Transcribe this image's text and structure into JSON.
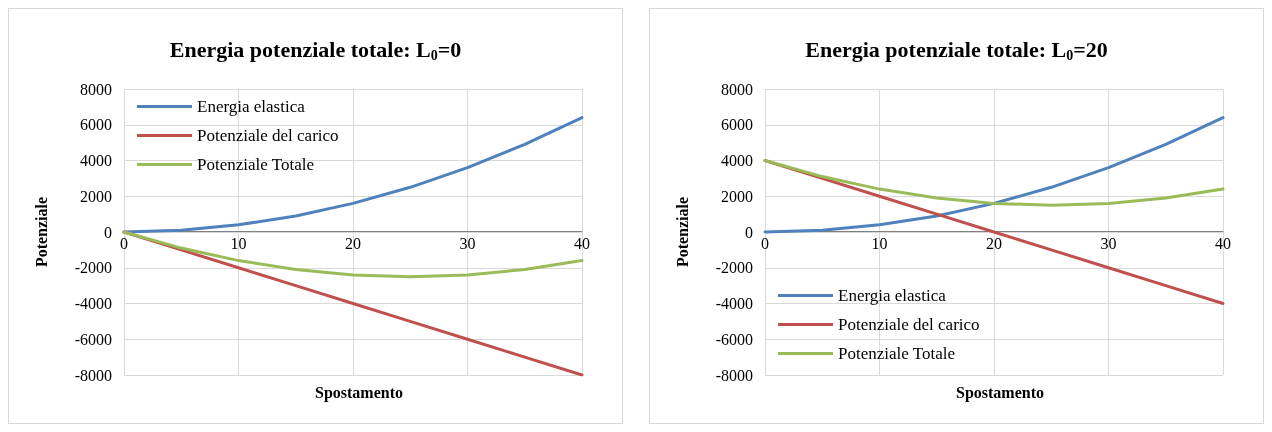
{
  "chart_data": [
    {
      "type": "line",
      "title": "Energia potenziale totale: L$_{0}$=0",
      "xlabel": "Spostamento",
      "ylabel": "Potenziale",
      "x": [
        0,
        5,
        10,
        15,
        20,
        25,
        30,
        35,
        40
      ],
      "series": [
        {
          "name": "Energia elastica",
          "color": "#4f81bd",
          "values": [
            0,
            100,
            400,
            900,
            1600,
            2500,
            3600,
            4900,
            6400
          ]
        },
        {
          "name": "Potenziale del carico",
          "color": "#c0504d",
          "values": [
            0,
            -1000,
            -2000,
            -3000,
            -4000,
            -5000,
            -6000,
            -7000,
            -8000
          ]
        },
        {
          "name": "Potenziale Totale",
          "color": "#9bbb59",
          "values": [
            0,
            -900,
            -1600,
            -2100,
            -2400,
            -2500,
            -2400,
            -2100,
            -1600
          ]
        }
      ],
      "xlim": [
        0,
        40
      ],
      "xticks": [
        0,
        10,
        20,
        30,
        40
      ],
      "ylim": [
        -8000,
        8000
      ],
      "yticks": [
        -8000,
        -6000,
        -4000,
        -2000,
        0,
        2000,
        4000,
        6000,
        8000
      ],
      "grid": true,
      "legend": "top left"
    },
    {
      "type": "line",
      "title": "Energia potenziale totale: L$_{0}$=20",
      "xlabel": "Spostamento",
      "ylabel": "Potenziale",
      "x": [
        0,
        5,
        10,
        15,
        20,
        25,
        30,
        35,
        40
      ],
      "series": [
        {
          "name": "Energia elastica",
          "color": "#4f81bd",
          "values": [
            0,
            100,
            400,
            900,
            1600,
            2500,
            3600,
            4900,
            6400
          ]
        },
        {
          "name": "Potenziale del carico",
          "color": "#c0504d",
          "values": [
            4000,
            3000,
            2000,
            1000,
            0,
            -1000,
            -2000,
            -3000,
            -4000
          ]
        },
        {
          "name": "Potenziale Totale",
          "color": "#9bbb59",
          "values": [
            4000,
            3100,
            2400,
            1900,
            1600,
            1500,
            1600,
            1900,
            2400
          ]
        }
      ],
      "xlim": [
        0,
        40
      ],
      "xticks": [
        0,
        10,
        20,
        30,
        40
      ],
      "ylim": [
        -8000,
        8000
      ],
      "yticks": [
        -8000,
        -6000,
        -4000,
        -2000,
        0,
        2000,
        4000,
        6000,
        8000
      ],
      "grid": true,
      "legend": "bottom left"
    }
  ]
}
